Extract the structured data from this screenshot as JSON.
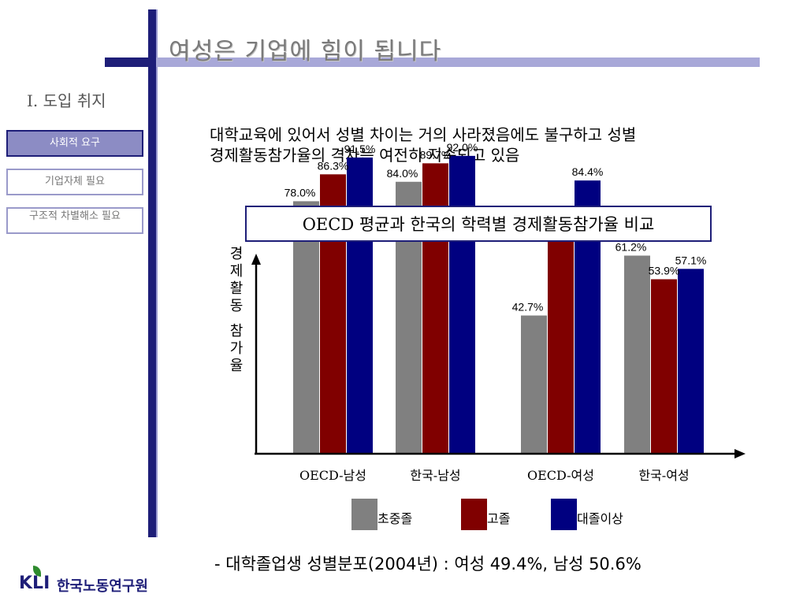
{
  "title": "여성은 기업에 힘이 됩니다",
  "section": "Ⅰ. 도입 취지",
  "nav": [
    {
      "label": "사회적 요구",
      "active": true
    },
    {
      "label": "기업자체 필요",
      "active": false
    },
    {
      "label": "구조적 차별해소 필요",
      "active": false
    }
  ],
  "intro": {
    "line1": "대학교육에 있어서 성별 차이는 거의 사라졌음에도 불구하고 성별",
    "line2": "경제활동참가율의 격차는 여전히 지속되고 있음"
  },
  "chart_data": {
    "type": "bar",
    "title": "OECD 평균과 한국의 학력별 경제활동참가율 비교",
    "ylabel": "경제활동 참가율",
    "categories": [
      "OECD-남성",
      "한국-남성",
      "OECD-여성",
      "한국-여성"
    ],
    "series": [
      {
        "name": "초중졸",
        "color": "#808080",
        "values": [
          78.0,
          84.0,
          42.7,
          61.2
        ]
      },
      {
        "name": "고졸",
        "color": "#800000",
        "values": [
          86.3,
          89.7,
          71.4,
          53.9
        ]
      },
      {
        "name": "대졸이상",
        "color": "#000080",
        "values": [
          91.5,
          92.0,
          84.4,
          57.1
        ]
      }
    ],
    "data_labels": [
      [
        "78.0%",
        "86.3%",
        "91.5%"
      ],
      [
        "84.0%",
        "89.7%",
        "92.0%"
      ],
      [
        "42.7%",
        "71.4%",
        "84.4%"
      ],
      [
        "61.2%",
        "53.9%",
        "57.1%"
      ]
    ],
    "ylim": [
      0,
      100
    ],
    "legend_position": "bottom",
    "grid": false
  },
  "footnote": "- 대학졸업생 성별분포(2004년) : 여성 49.4%, 남성 50.6%",
  "logo": {
    "mark": "KLI",
    "name": "한국노동연구원"
  }
}
